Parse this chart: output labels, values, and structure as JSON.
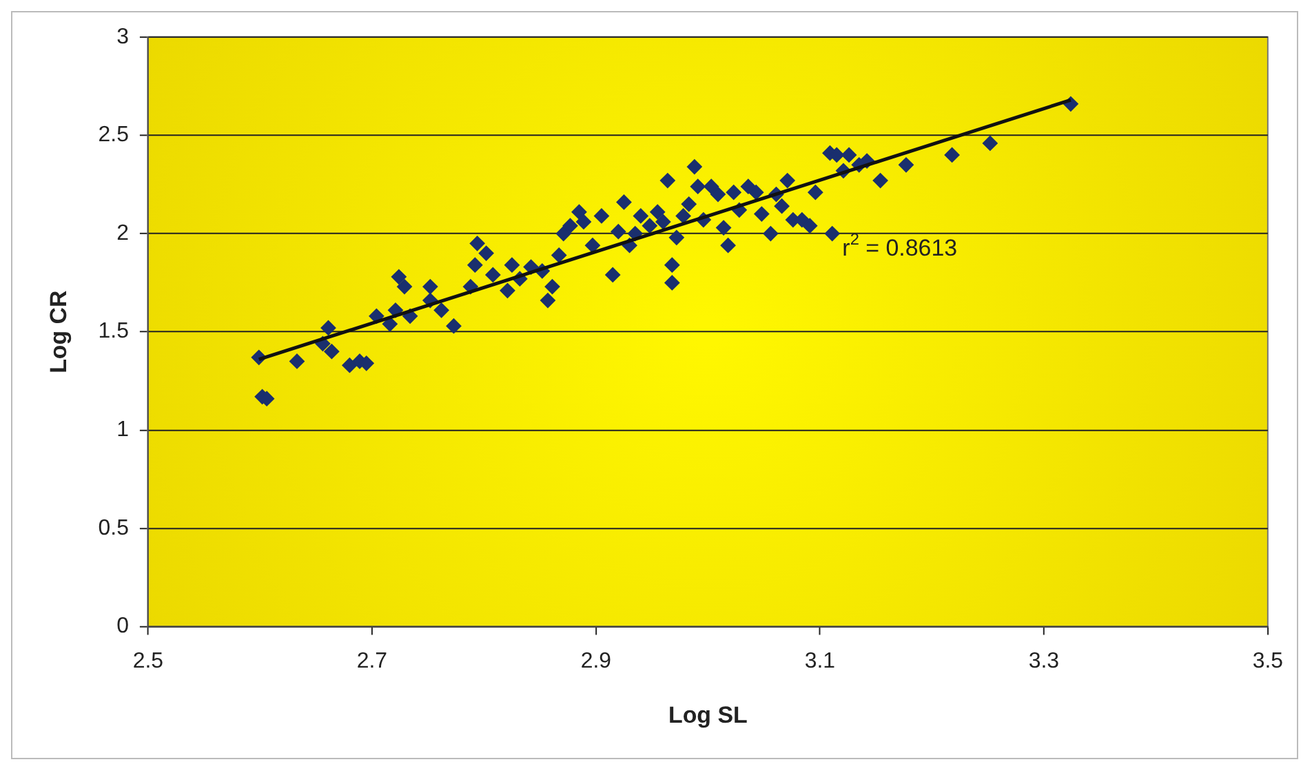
{
  "chart_data": {
    "type": "scatter",
    "xlabel": "Log SL",
    "ylabel": "Log CR",
    "xlim": [
      2.5,
      3.5
    ],
    "xticks": [
      2.5,
      2.7,
      2.9,
      3.1,
      3.3,
      3.5
    ],
    "ylim": [
      0,
      3
    ],
    "yticks": [
      0,
      0.5,
      1,
      1.5,
      2,
      2.5,
      3
    ],
    "grid": "y",
    "legend": false,
    "marker": "diamond",
    "annotations": [
      "r$^{2}$ = 0.8613"
    ],
    "series": [
      {
        "color": "#1a2f6e",
        "x": [
          2.599,
          2.602,
          2.606,
          2.633,
          2.656,
          2.661,
          2.664,
          2.68,
          2.689,
          2.695,
          2.704,
          2.716,
          2.721,
          2.724,
          2.729,
          2.734,
          2.752,
          2.752,
          2.762,
          2.773,
          2.788,
          2.792,
          2.794,
          2.802,
          2.808,
          2.821,
          2.825,
          2.832,
          2.842,
          2.852,
          2.857,
          2.861,
          2.867,
          2.871,
          2.877,
          2.885,
          2.889,
          2.897,
          2.905,
          2.915,
          2.92,
          2.925,
          2.93,
          2.935,
          2.94,
          2.948,
          2.955,
          2.96,
          2.964,
          2.968,
          2.968,
          2.972,
          2.978,
          2.983,
          2.988,
          2.991,
          2.996,
          3.003,
          3.009,
          3.014,
          3.018,
          3.023,
          3.028,
          3.036,
          3.043,
          3.048,
          3.056,
          3.061,
          3.066,
          3.071,
          3.076,
          3.084,
          3.091,
          3.096,
          3.109,
          3.111,
          3.115,
          3.121,
          3.126,
          3.135,
          3.142,
          3.154,
          3.177,
          3.218,
          3.252,
          3.324
        ],
        "values": [
          1.37,
          1.17,
          1.16,
          1.35,
          1.44,
          1.52,
          1.4,
          1.33,
          1.35,
          1.34,
          1.58,
          1.54,
          1.61,
          1.78,
          1.73,
          1.58,
          1.66,
          1.73,
          1.61,
          1.53,
          1.73,
          1.84,
          1.95,
          1.9,
          1.79,
          1.71,
          1.84,
          1.77,
          1.83,
          1.81,
          1.66,
          1.73,
          1.89,
          2.0,
          2.04,
          2.11,
          2.06,
          1.94,
          2.09,
          1.79,
          2.01,
          2.16,
          1.94,
          2.0,
          2.09,
          2.04,
          2.11,
          2.06,
          2.27,
          1.84,
          1.75,
          1.98,
          2.09,
          2.15,
          2.34,
          2.24,
          2.07,
          2.24,
          2.2,
          2.03,
          1.94,
          2.21,
          2.12,
          2.24,
          2.21,
          2.1,
          2.0,
          2.2,
          2.14,
          2.27,
          2.07,
          2.07,
          2.04,
          2.21,
          2.41,
          2.0,
          2.4,
          2.32,
          2.4,
          2.35,
          2.37,
          2.27,
          2.35,
          2.4,
          2.46,
          2.66
        ]
      },
      {
        "type": "line",
        "marker": "none",
        "color": "#111111",
        "x": [
          2.599,
          3.324
        ],
        "values": [
          1.36,
          2.68
        ]
      }
    ]
  }
}
